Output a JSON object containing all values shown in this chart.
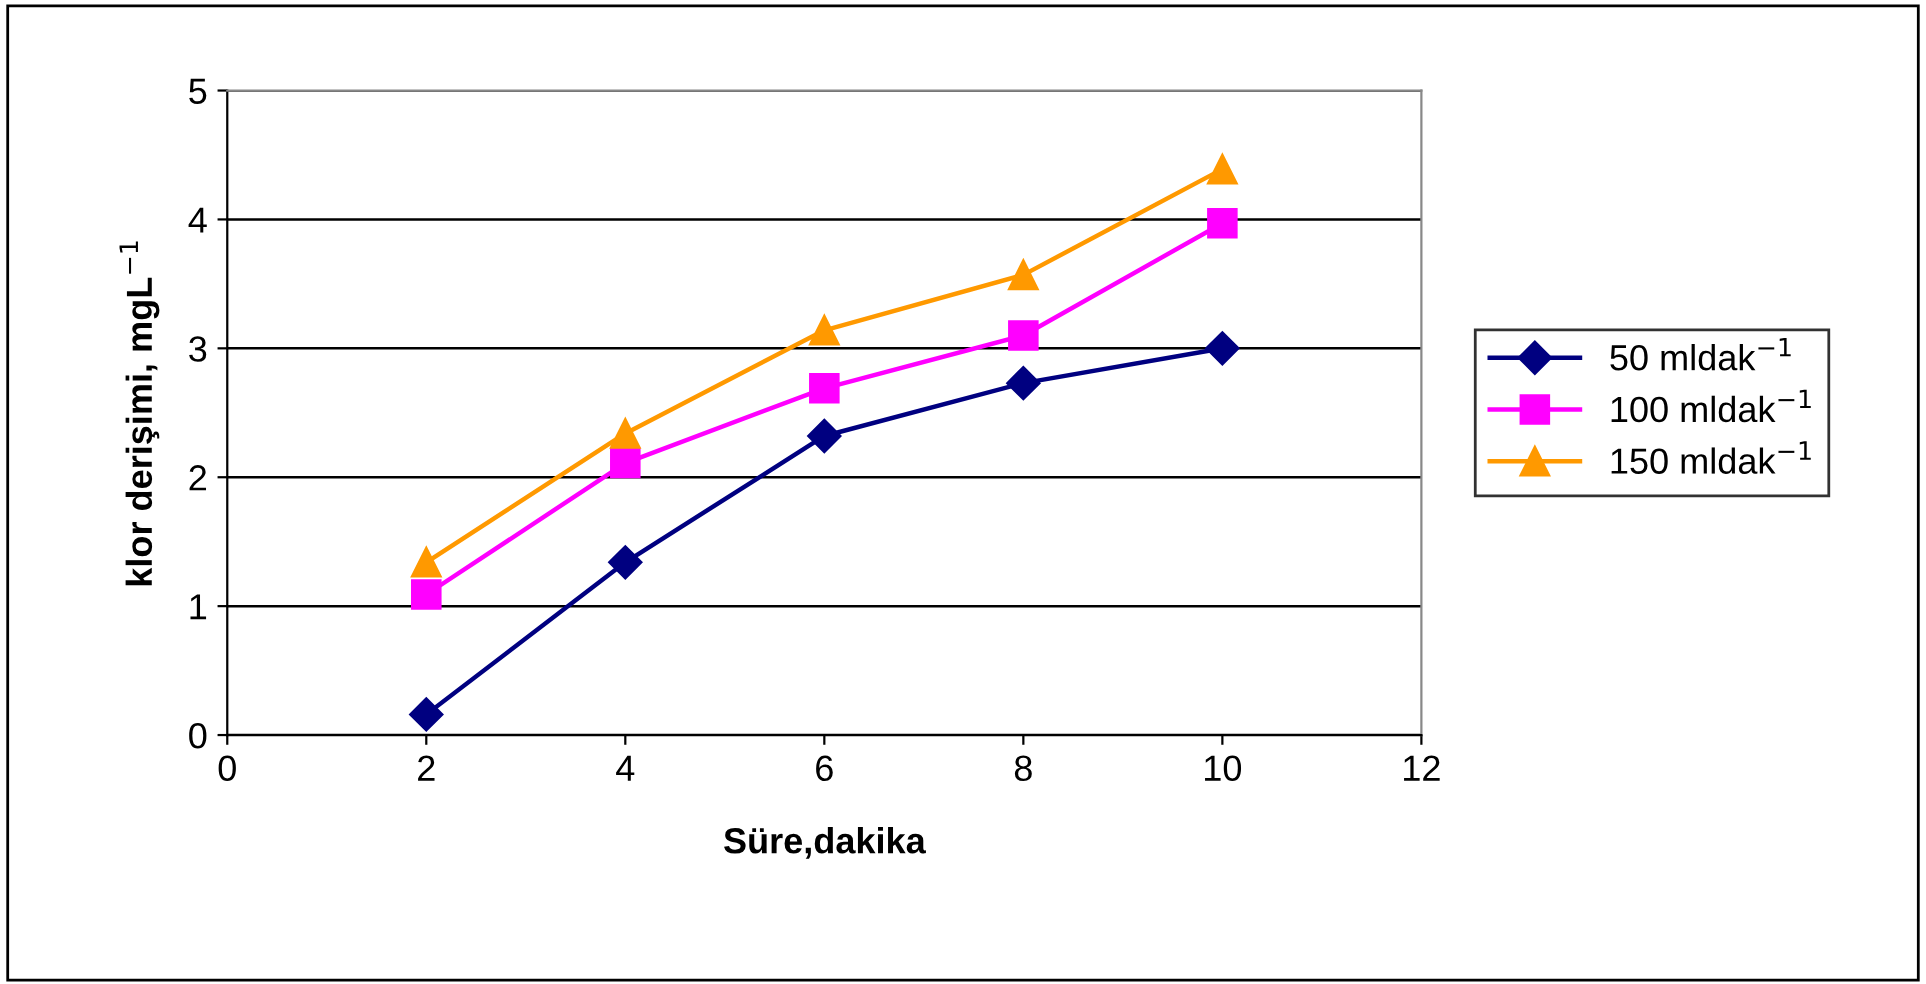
{
  "chart_data": {
    "type": "line",
    "xlabel": "Süre,dakika",
    "ylabel": "klor derişimi, mgL$^{−1}$",
    "x": [
      2,
      4,
      6,
      8,
      10
    ],
    "series": [
      {
        "name": "50 mldak$^{−1}$",
        "color": "#000080",
        "marker": "diamond",
        "values": [
          0.16,
          1.34,
          2.32,
          2.73,
          3.0
        ]
      },
      {
        "name": "100 mldak$^{−1}$",
        "color": "#ff00ff",
        "marker": "square",
        "values": [
          1.09,
          2.11,
          2.69,
          3.1,
          3.97
        ]
      },
      {
        "name": "150 mldak$^{−1}$",
        "color": "#ff9900",
        "marker": "triangle",
        "values": [
          1.34,
          2.34,
          3.14,
          3.57,
          4.39
        ]
      }
    ],
    "xlim": [
      0,
      12
    ],
    "xticks": [
      0,
      2,
      4,
      6,
      8,
      10,
      12
    ],
    "ylim": [
      0,
      5
    ],
    "yticks": [
      0,
      1,
      2,
      3,
      4,
      5
    ],
    "grid": "y",
    "legend": "right",
    "line_style": "solid"
  }
}
